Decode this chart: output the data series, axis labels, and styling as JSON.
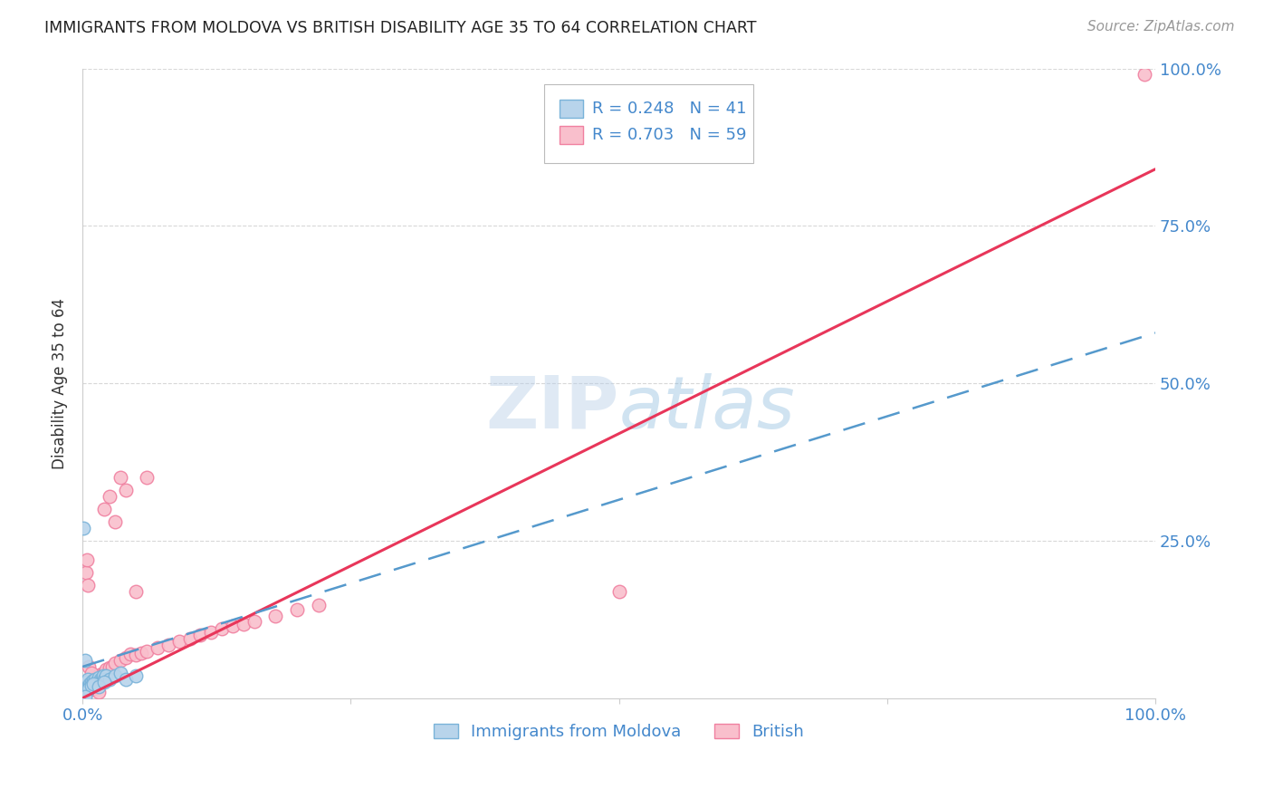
{
  "title": "IMMIGRANTS FROM MOLDOVA VS BRITISH DISABILITY AGE 35 TO 64 CORRELATION CHART",
  "source": "Source: ZipAtlas.com",
  "ylabel": "Disability Age 35 to 64",
  "xlim": [
    0.0,
    1.0
  ],
  "ylim": [
    0.0,
    1.0
  ],
  "xtick_labels": [
    "0.0%",
    "",
    "",
    "",
    "100.0%"
  ],
  "ytick_right_labels": [
    "",
    "25.0%",
    "50.0%",
    "75.0%",
    "100.0%"
  ],
  "watermark_text": "ZIPatlas",
  "blue_color": "#7ab3d9",
  "blue_fill": "#b8d4eb",
  "pink_color": "#f080a0",
  "pink_fill": "#f9bfcc",
  "blue_line_color": "#5599cc",
  "pink_line_color": "#e8365a",
  "background_color": "#ffffff",
  "grid_color": "#d8d8d8",
  "title_color": "#222222",
  "axis_label_color": "#333333",
  "tick_label_color": "#4488cc",
  "source_color": "#999999",
  "pink_line_x0": 0.0,
  "pink_line_y0": 0.0,
  "pink_line_x1": 1.0,
  "pink_line_y1": 0.84,
  "blue_line_x0": 0.0,
  "blue_line_y0": 0.05,
  "blue_line_x1": 1.0,
  "blue_line_y1": 0.58,
  "blue_scatter_x": [
    0.001,
    0.002,
    0.002,
    0.003,
    0.003,
    0.004,
    0.004,
    0.005,
    0.005,
    0.006,
    0.007,
    0.008,
    0.009,
    0.01,
    0.011,
    0.012,
    0.013,
    0.014,
    0.015,
    0.016,
    0.017,
    0.018,
    0.019,
    0.02,
    0.022,
    0.025,
    0.03,
    0.035,
    0.04,
    0.05,
    0.001,
    0.002,
    0.003,
    0.004,
    0.006,
    0.008,
    0.01,
    0.015,
    0.02,
    0.001,
    0.002
  ],
  "blue_scatter_y": [
    0.01,
    0.02,
    0.06,
    0.015,
    0.025,
    0.012,
    0.018,
    0.015,
    0.03,
    0.018,
    0.022,
    0.025,
    0.02,
    0.028,
    0.022,
    0.03,
    0.025,
    0.028,
    0.032,
    0.025,
    0.03,
    0.028,
    0.035,
    0.03,
    0.035,
    0.03,
    0.035,
    0.04,
    0.03,
    0.035,
    0.005,
    0.008,
    0.01,
    0.012,
    0.015,
    0.02,
    0.022,
    0.018,
    0.025,
    0.27,
    0.003
  ],
  "pink_scatter_x": [
    0.001,
    0.002,
    0.003,
    0.004,
    0.005,
    0.006,
    0.007,
    0.008,
    0.009,
    0.01,
    0.011,
    0.012,
    0.013,
    0.015,
    0.016,
    0.018,
    0.02,
    0.022,
    0.025,
    0.028,
    0.03,
    0.035,
    0.04,
    0.045,
    0.05,
    0.055,
    0.06,
    0.07,
    0.08,
    0.09,
    0.1,
    0.11,
    0.12,
    0.13,
    0.14,
    0.15,
    0.16,
    0.18,
    0.2,
    0.22,
    0.003,
    0.004,
    0.005,
    0.006,
    0.008,
    0.01,
    0.012,
    0.015,
    0.002,
    0.003,
    0.02,
    0.025,
    0.03,
    0.035,
    0.04,
    0.05,
    0.06,
    0.99,
    0.5
  ],
  "pink_scatter_y": [
    0.005,
    0.008,
    0.01,
    0.012,
    0.015,
    0.018,
    0.02,
    0.022,
    0.025,
    0.025,
    0.028,
    0.03,
    0.032,
    0.03,
    0.035,
    0.038,
    0.04,
    0.045,
    0.048,
    0.05,
    0.055,
    0.06,
    0.065,
    0.07,
    0.068,
    0.072,
    0.075,
    0.08,
    0.085,
    0.09,
    0.095,
    0.1,
    0.105,
    0.11,
    0.115,
    0.118,
    0.122,
    0.13,
    0.14,
    0.148,
    0.2,
    0.22,
    0.18,
    0.05,
    0.04,
    0.015,
    0.02,
    0.01,
    0.005,
    0.008,
    0.3,
    0.32,
    0.28,
    0.35,
    0.33,
    0.17,
    0.35,
    0.99,
    0.17
  ],
  "legend_r_blue": "R = 0.248",
  "legend_n_blue": "N = 41",
  "legend_r_pink": "R = 0.703",
  "legend_n_pink": "N = 59",
  "legend_label_blue": "Immigrants from Moldova",
  "legend_label_pink": "British"
}
